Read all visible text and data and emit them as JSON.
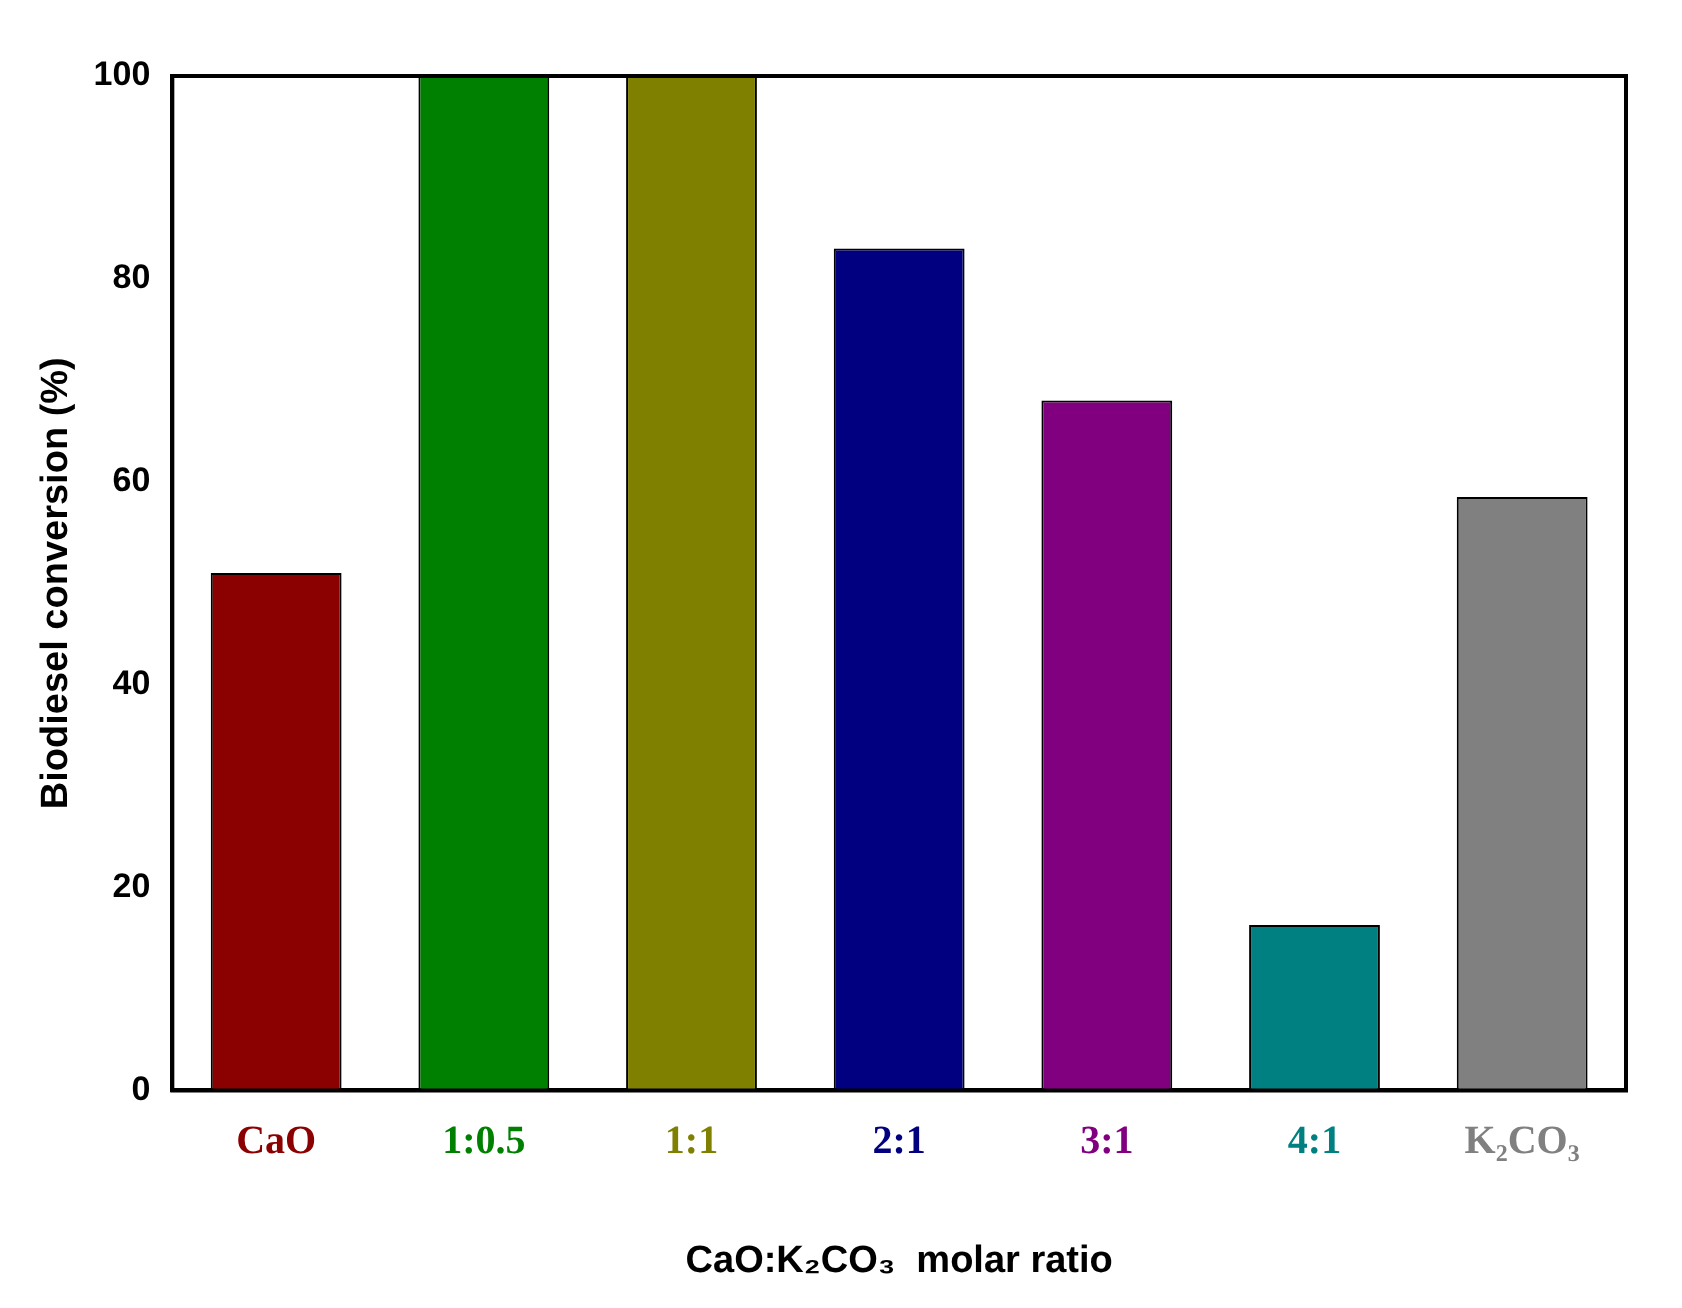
{
  "chart_data": {
    "type": "bar",
    "xlabel": "CaO:K₂CO₃  molar ratio",
    "ylabel": "Biodiesel conversion (%)",
    "categories": [
      "CaO",
      "1:0.5",
      "1:1",
      "2:1",
      "3:1",
      "4:1",
      "K₂CO₃"
    ],
    "values": [
      51,
      100,
      100,
      83,
      68,
      16.3,
      58.5
    ],
    "colors": [
      "#8b0000",
      "#008000",
      "#808000",
      "#000080",
      "#800080",
      "#008080",
      "#808080"
    ],
    "ylim": [
      0,
      100
    ],
    "yticks": [
      0,
      20,
      40,
      60,
      80,
      100
    ],
    "grid": false,
    "legend": false
  }
}
